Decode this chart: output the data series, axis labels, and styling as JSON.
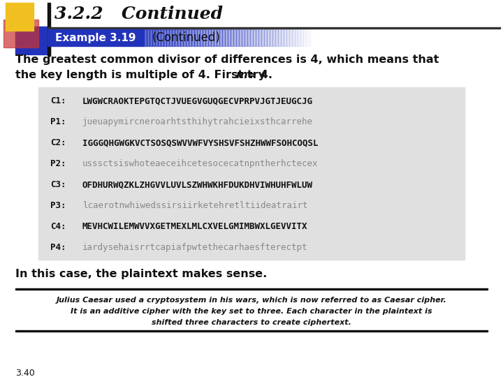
{
  "title": "3.2.2   Continued",
  "example_label": "Example 3.19",
  "example_continued": "(Continued)",
  "body_text1": "The greatest common divisor of differences is 4, which means that",
  "body_text2": "the key length is multiple of 4. First try ",
  "body_text2_italic": "m",
  "body_text2_end": " = 4.",
  "code_lines": [
    [
      "C1:",
      "LWGWCRAOKTEPGTQCTJVUEGVGUQGECVPRPVJGTJEUGCJG",
      "bold"
    ],
    [
      "P1:",
      "jueuapymircneroarhtsthihytrahcieixsthcarrehe",
      "italic"
    ],
    [
      "C2:",
      "IGGGQHGWGKVCTSOSQSWVVWFVYSHSVFSHZHWWFSOHCOQSL",
      "bold"
    ],
    [
      "P2:",
      "usssctsiswhoteaeceihcetesocecatnpntherhctecex",
      "italic"
    ],
    [
      "C3:",
      "OFDHURWQZKLZHGVVLUVLSZWHWKHFDUKDHVIWHUHFWLUW",
      "bold"
    ],
    [
      "P3:",
      "lcaerotnwhiwedssirsiirketehretltiideatrairt",
      "italic"
    ],
    [
      "C4:",
      "MEVHCWILEMWVVXGETMEXLMLCXVELGMIMBWXLGEVVITX",
      "bold"
    ],
    [
      "P4:",
      "iardysehaisrrtcapiafpwtethecarhaesfterectpt",
      "italic"
    ]
  ],
  "conclusion": "In this case, the plaintext makes sense.",
  "footnote1": "Julius Caesar used a cryptosystem in his wars, which is now referred to as Caesar cipher.",
  "footnote2": "It is an additive cipher with the key set to three. Each character in the plaintext is",
  "footnote3": "shifted three characters to create ciphertext.",
  "page_num": "3.40",
  "bg_color": "#ffffff",
  "example_box_color": "#2233bb",
  "code_bg": "#e0e0e0",
  "decor_yellow": "#f0c020",
  "decor_red": "#cc3333",
  "decor_blue": "#2233bb"
}
